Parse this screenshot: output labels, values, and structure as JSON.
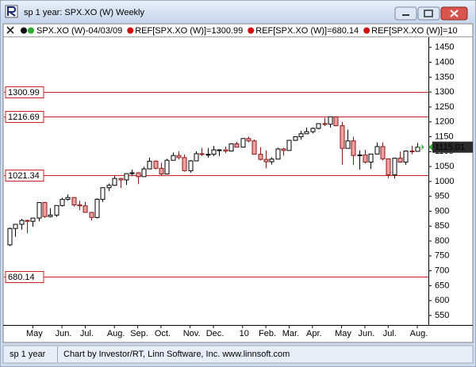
{
  "window": {
    "title": "sp 1 year: SPX.XO (W) Weekly",
    "status": "sp 1 year",
    "credit": "Chart by Investor/RT, Linn Software, Inc. www.linnsoft.com"
  },
  "chart_data": {
    "type": "candlestick",
    "legend": [
      "SPX.XO (W)-04/03/09",
      "REF[SPX.XO (W)]=1300.99",
      "REF[SPX.XO (W)]=680.14",
      "REF[SPX.XO (W)]=10"
    ],
    "categories": [
      null,
      null,
      null,
      null,
      "May",
      null,
      null,
      null,
      null,
      "Jun.",
      null,
      null,
      null,
      "Jul.",
      null,
      null,
      null,
      null,
      "Aug.",
      null,
      null,
      null,
      "Sep.",
      null,
      null,
      null,
      "Oct.",
      null,
      null,
      null,
      null,
      "Nov.",
      null,
      null,
      null,
      "Dec.",
      null,
      null,
      null,
      null,
      "10",
      null,
      null,
      null,
      "Feb.",
      null,
      null,
      null,
      "Mar.",
      null,
      null,
      null,
      "Apr.",
      null,
      null,
      null,
      null,
      "May",
      null,
      null,
      null,
      "Jun.",
      null,
      null,
      null,
      "Jul.",
      null,
      null,
      null,
      null,
      "Aug."
    ],
    "open": [
      787,
      842,
      856,
      869,
      866,
      877,
      929,
      882,
      887,
      919,
      940,
      946,
      921,
      918,
      896,
      879,
      940,
      979,
      987,
      1010,
      1005,
      1026,
      1029,
      1016,
      1042,
      1068,
      1044,
      1025,
      1071,
      1087,
      1080,
      1036,
      1069,
      1093,
      1091,
      1091,
      1106,
      1106,
      1102,
      1126,
      1115,
      1144,
      1136,
      1091,
      1074,
      1066,
      1075,
      1109,
      1104,
      1138,
      1150,
      1160,
      1167,
      1178,
      1194,
      1192,
      1217,
      1187,
      1111,
      1136,
      1087,
      1089,
      1065,
      1092,
      1117,
      1076,
      1022,
      1078,
      1065,
      1102,
      1101
    ],
    "high": [
      845,
      857,
      875,
      872,
      878,
      930,
      931,
      910,
      920,
      945,
      956,
      947,
      935,
      931,
      898,
      943,
      980,
      993,
      1018,
      1012,
      1027,
      1039,
      1031,
      1049,
      1080,
      1071,
      1063,
      1076,
      1097,
      1101,
      1090,
      1072,
      1101,
      1113,
      1112,
      1119,
      1108,
      1117,
      1128,
      1133,
      1145,
      1150,
      1141,
      1115,
      1104,
      1081,
      1113,
      1113,
      1139,
      1150,
      1170,
      1181,
      1181,
      1194,
      1214,
      1217,
      1219,
      1200,
      1174,
      1150,
      1104,
      1106,
      1092,
      1131,
      1131,
      1076,
      1078,
      1100,
      1103,
      1120,
      1129
    ],
    "low": [
      783,
      814,
      838,
      826,
      848,
      866,
      878,
      879,
      881,
      916,
      935,
      916,
      904,
      895,
      869,
      876,
      931,
      968,
      985,
      978,
      988,
      1018,
      991,
      1016,
      1042,
      1041,
      1019,
      1025,
      1071,
      1074,
      1033,
      1029,
      1069,
      1085,
      1080,
      1085,
      1085,
      1095,
      1102,
      1115,
      1115,
      1131,
      1090,
      1071,
      1044,
      1057,
      1075,
      1086,
      1104,
      1136,
      1140,
      1160,
      1161,
      1175,
      1186,
      1181,
      1185,
      1056,
      1110,
      1055,
      1040,
      1060,
      1042,
      1092,
      1071,
      1011,
      1010,
      1063,
      1056,
      1091,
      1100
    ],
    "close": [
      842,
      856,
      869,
      866,
      877,
      929,
      882,
      887,
      919,
      940,
      946,
      921,
      918,
      896,
      879,
      940,
      979,
      987,
      1010,
      1005,
      1026,
      1029,
      1016,
      1042,
      1068,
      1044,
      1025,
      1071,
      1087,
      1080,
      1036,
      1069,
      1093,
      1091,
      1091,
      1106,
      1106,
      1102,
      1126,
      1115,
      1144,
      1136,
      1091,
      1074,
      1066,
      1075,
      1109,
      1104,
      1138,
      1150,
      1160,
      1167,
      1178,
      1194,
      1192,
      1217,
      1187,
      1111,
      1136,
      1087,
      1089,
      1065,
      1092,
      1117,
      1076,
      1022,
      1078,
      1065,
      1102,
      1101,
      1115.01
    ],
    "ylim": [
      518,
      1484
    ],
    "yticks": [
      550,
      600,
      650,
      700,
      750,
      800,
      850,
      900,
      950,
      1000,
      1050,
      1100,
      1150,
      1200,
      1250,
      1300,
      1350,
      1400,
      1450
    ],
    "ref_lines": [
      1300.99,
      1216.69,
      1021.34,
      680.14
    ],
    "last_price": 1115.01,
    "up_color": "#ffffff",
    "down_color": "#f2a0a0",
    "ref_color": "#d02020",
    "last_color": "#2a2a2a"
  }
}
